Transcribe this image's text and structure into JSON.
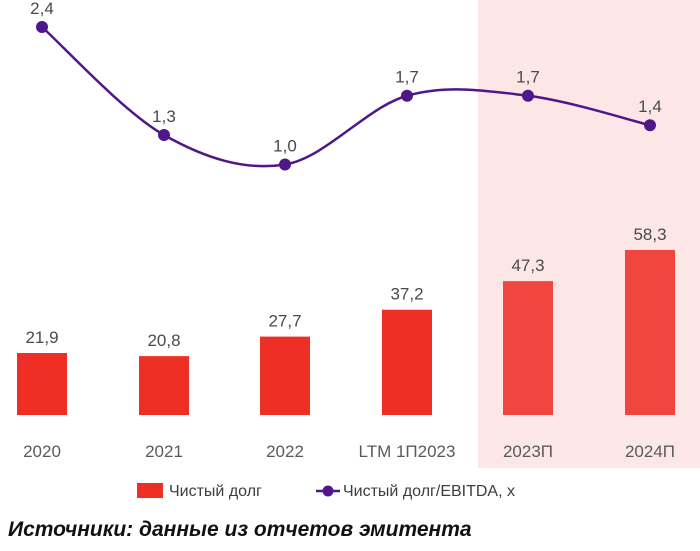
{
  "chart_data": {
    "type": "bar",
    "categories": [
      "2020",
      "2021",
      "2022",
      "LTM 1П2023",
      "2023П",
      "2024П"
    ],
    "forecast_categories": [
      "2023П",
      "2024П"
    ],
    "series": [
      {
        "name": "Чистый долг",
        "type": "bar",
        "values": [
          21.9,
          20.8,
          27.7,
          37.2,
          47.3,
          58.3
        ],
        "labels": [
          "21,9",
          "20,8",
          "27,7",
          "37,2",
          "47,3",
          "58,3"
        ],
        "color": "#ee2f25",
        "forecast_color": "#f0463f"
      },
      {
        "name": "Чистый долг/EBITDA, х",
        "type": "line",
        "values": [
          2.4,
          1.3,
          1.0,
          1.7,
          1.7,
          1.4
        ],
        "labels": [
          "2,4",
          "1,3",
          "1,0",
          "1,7",
          "1,7",
          "1,4"
        ],
        "color": "#4f1787"
      }
    ],
    "forecast_shading_color": "#fde6e6",
    "legend_position": "bottom",
    "grid": false
  },
  "source_note": "Источники: данные из отчетов эмитента"
}
